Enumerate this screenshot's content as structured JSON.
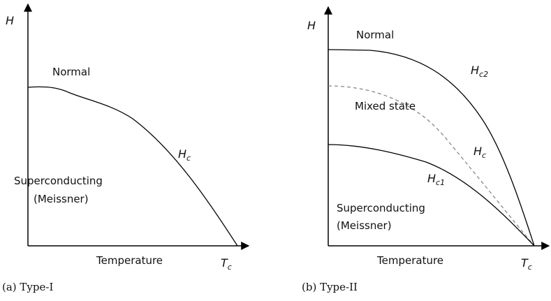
{
  "panels": [
    {
      "axis_y": "H",
      "regions": [
        "Normal",
        "Superconducting",
        "(Meissner)"
      ],
      "curves": [
        {
          "symbol": "H",
          "subscript": "c"
        }
      ],
      "axis_x": "Temperature",
      "x_end": {
        "symbol": "T",
        "subscript": "c"
      },
      "caption": "(a) Type-I"
    },
    {
      "axis_y": "H",
      "regions": [
        "Normal",
        "Mixed state",
        "Superconducting",
        "(Meissner)"
      ],
      "curves": [
        {
          "symbol": "H",
          "subscript": "c2"
        },
        {
          "symbol": "H",
          "subscript": "c"
        },
        {
          "symbol": "H",
          "subscript": "c1"
        }
      ],
      "axis_x": "Temperature",
      "x_end": {
        "symbol": "T",
        "subscript": "c"
      },
      "caption": "(b) Type-II"
    }
  ]
}
